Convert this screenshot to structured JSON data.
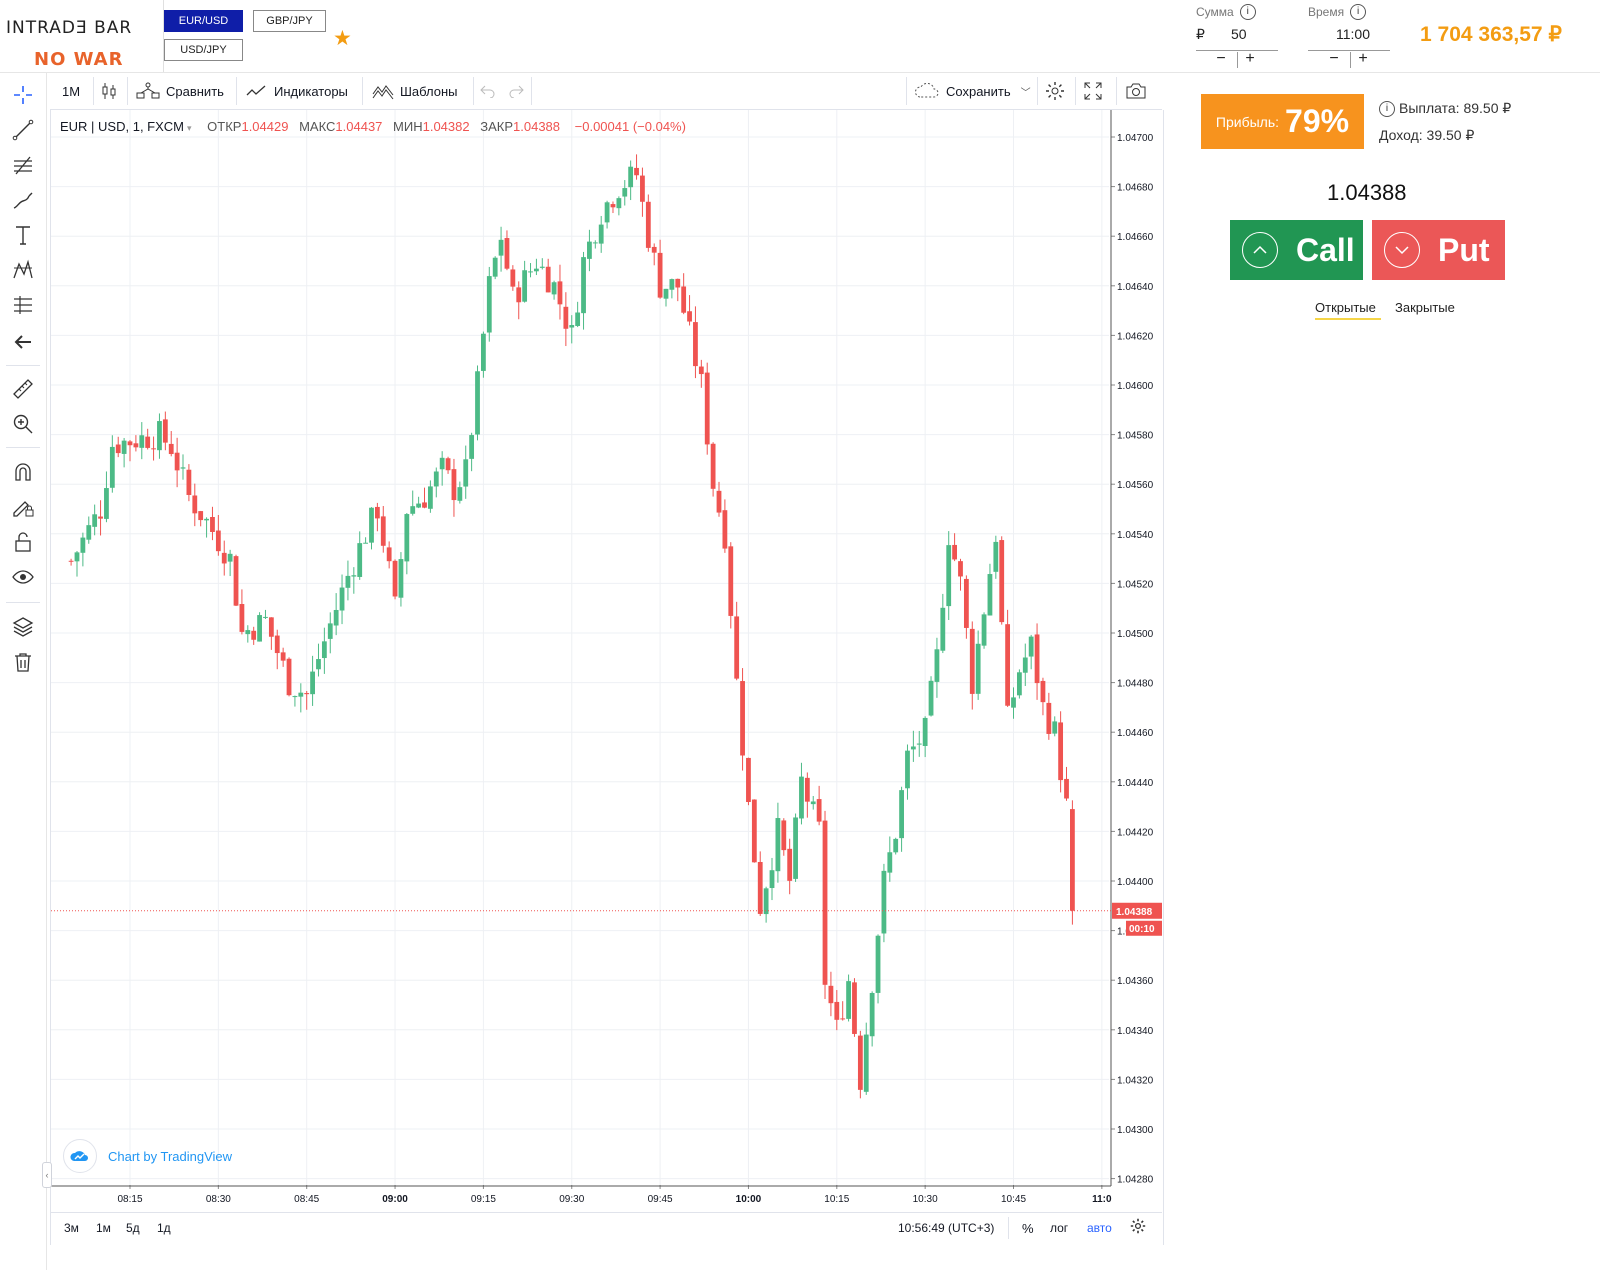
{
  "header": {
    "logo_text": "INTRADƎ BAR",
    "logo_sub": "NO WAR",
    "pairs": [
      {
        "label": "EUR/USD",
        "active": true
      },
      {
        "label": "GBP/JPY",
        "active": false
      },
      {
        "label": "USD/JPY",
        "active": false
      }
    ],
    "favorite_icon": "star-icon",
    "amount": {
      "label": "Сумма",
      "currency": "₽",
      "value": "50",
      "minus": "−",
      "plus": "+"
    },
    "time": {
      "label": "Время",
      "value": "11:00",
      "minus": "−",
      "plus": "+"
    },
    "info_symbol": "i",
    "balance": "1 704 363,57 ₽"
  },
  "left_toolbar": {
    "tools": [
      "crosshair-icon",
      "trend-line-icon",
      "fib-icon",
      "brush-icon",
      "text-icon",
      "pattern-icon",
      "prediction-icon",
      "back-arrow-icon",
      "ruler-icon",
      "zoom-in-icon",
      "magnet-icon",
      "lock-drawing-icon",
      "unlock-icon",
      "eye-icon",
      "layers-icon",
      "trash-icon"
    ]
  },
  "chart_toolbar": {
    "interval": "1M",
    "compare": "Сравнить",
    "indicators": "Индикаторы",
    "templates": "Шаблоны",
    "save": "Сохранить"
  },
  "legend": {
    "symbol": "EUR | USD, 1, FXCM",
    "open_label": "ОТКР",
    "open": "1.04429",
    "high_label": "МАКС",
    "high": "1.04437",
    "low_label": "МИН",
    "low": "1.04382",
    "close_label": "ЗАКР",
    "close": "1.04388",
    "change": "−0.00041 (−0.04%)"
  },
  "tv_badge": "Chart by TradingView",
  "bottom_bar": {
    "ranges": [
      "3м",
      "1м",
      "5д",
      "1д"
    ],
    "clock": "10:56:49 (UTC+3)",
    "percent": "%",
    "log": "лог",
    "auto": "авто"
  },
  "right_panel": {
    "profit_label": "Прибыль:",
    "profit_value": "79%",
    "payout": "Выплата: 89.50 ₽",
    "income": "Доход: 39.50 ₽",
    "current_price": "1.04388",
    "call": "Call",
    "put": "Put",
    "tab_open": "Открытые",
    "tab_closed": "Закрытые"
  },
  "colors": {
    "up": "#26a69a",
    "up_fill": "#4cba86",
    "down": "#ef5350",
    "accent": "#f39c12",
    "call": "#219653",
    "put": "#eb5757"
  },
  "chart_data": {
    "type": "candlestick",
    "symbol": "EUR | USD, 1, FXCM",
    "ylim": [
      1.0427,
      1.0471
    ],
    "yticks": [
      "1.04700",
      "1.04680",
      "1.04660",
      "1.04640",
      "1.04620",
      "1.04600",
      "1.04580",
      "1.04560",
      "1.04540",
      "1.04520",
      "1.04500",
      "1.04480",
      "1.04460",
      "1.04440",
      "1.04420",
      "1.04400",
      "1.04380",
      "1.04360",
      "1.04340",
      "1.04320",
      "1.04300",
      "1.04280"
    ],
    "xticks": [
      "08:15",
      "08:30",
      "08:45",
      "09:00",
      "09:15",
      "09:30",
      "09:45",
      "10:00",
      "10:15",
      "10:30",
      "10:45",
      "11:0"
    ],
    "last_price_label": "1.04388",
    "countdown_label": "00:10",
    "anchors": [
      [
        "08:05",
        1.04529
      ],
      [
        "08:10",
        1.0455
      ],
      [
        "08:12",
        1.04576
      ],
      [
        "08:20",
        1.0458
      ],
      [
        "08:22",
        1.04575
      ],
      [
        "08:25",
        1.04555
      ],
      [
        "08:28",
        1.04545
      ],
      [
        "08:32",
        1.0453
      ],
      [
        "08:34",
        1.045
      ],
      [
        "08:38",
        1.04505
      ],
      [
        "08:42",
        1.0448
      ],
      [
        "08:45",
        1.04475
      ],
      [
        "08:47",
        1.0449
      ],
      [
        "08:50",
        1.0451
      ],
      [
        "08:52",
        1.04523
      ],
      [
        "08:55",
        1.0454
      ],
      [
        "08:57",
        1.0455
      ],
      [
        "08:59",
        1.04525
      ],
      [
        "09:00",
        1.0451
      ],
      [
        "09:02",
        1.0455
      ],
      [
        "09:05",
        1.04555
      ],
      [
        "09:08",
        1.04566
      ],
      [
        "09:10",
        1.04558
      ],
      [
        "09:12",
        1.04565
      ],
      [
        "09:14",
        1.046
      ],
      [
        "09:16",
        1.0464
      ],
      [
        "09:18",
        1.0466
      ],
      [
        "09:20",
        1.04635
      ],
      [
        "09:24",
        1.0465
      ],
      [
        "09:27",
        1.0464
      ],
      [
        "09:30",
        1.0462
      ],
      [
        "09:32",
        1.0465
      ],
      [
        "09:35",
        1.0467
      ],
      [
        "09:38",
        1.0468
      ],
      [
        "09:41",
        1.04685
      ],
      [
        "09:43",
        1.0466
      ],
      [
        "09:45",
        1.0464
      ],
      [
        "09:48",
        1.0464
      ],
      [
        "09:50",
        1.0462
      ],
      [
        "09:52",
        1.046
      ],
      [
        "09:54",
        1.0456
      ],
      [
        "09:56",
        1.0454
      ],
      [
        "09:58",
        1.0448
      ],
      [
        "10:00",
        1.0443
      ],
      [
        "10:02",
        1.0439
      ],
      [
        "10:05",
        1.0442
      ],
      [
        "10:07",
        1.044
      ],
      [
        "10:09",
        1.0444
      ],
      [
        "10:12",
        1.0442
      ],
      [
        "10:13",
        1.0436
      ],
      [
        "10:15",
        1.0434
      ],
      [
        "10:17",
        1.0436
      ],
      [
        "10:19",
        1.0432
      ],
      [
        "10:21",
        1.0436
      ],
      [
        "10:23",
        1.044
      ],
      [
        "10:25",
        1.0442
      ],
      [
        "10:27",
        1.0445
      ],
      [
        "10:30",
        1.0446
      ],
      [
        "10:32",
        1.0449
      ],
      [
        "10:34",
        1.0454
      ],
      [
        "10:36",
        1.0452
      ],
      [
        "10:38",
        1.0448
      ],
      [
        "10:40",
        1.0451
      ],
      [
        "10:42",
        1.0454
      ],
      [
        "10:44",
        1.04465
      ],
      [
        "10:46",
        1.04485
      ],
      [
        "10:48",
        1.04495
      ],
      [
        "10:50",
        1.0447
      ],
      [
        "10:52",
        1.0446
      ],
      [
        "10:54",
        1.0443
      ],
      [
        "10:55",
        1.04388
      ]
    ]
  }
}
